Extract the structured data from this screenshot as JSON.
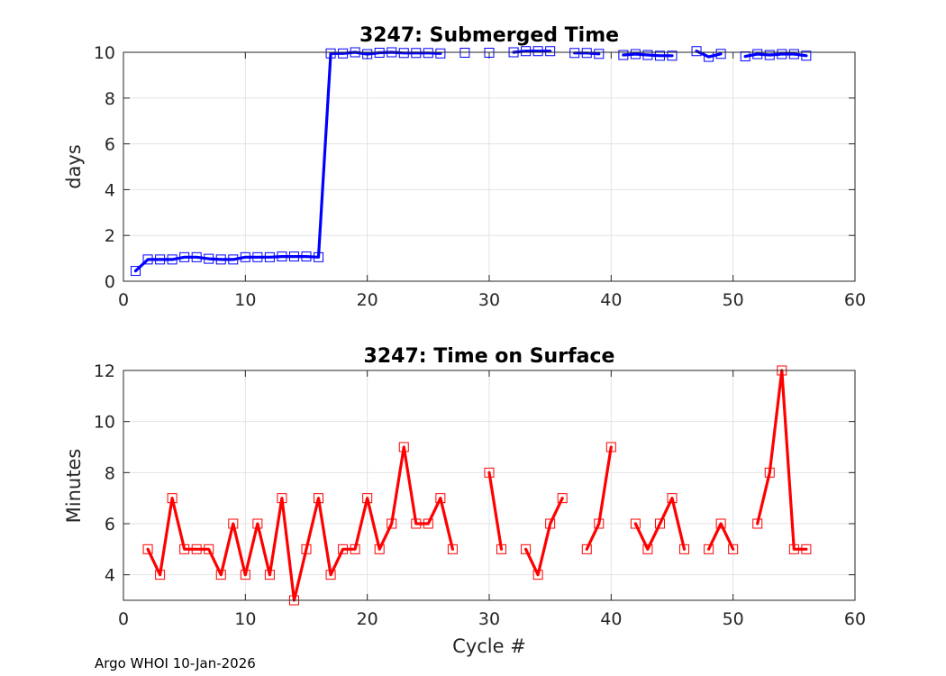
{
  "footer": "Argo WHOI 10-Jan-2026",
  "xlabel": "Cycle #",
  "chart_data": [
    {
      "type": "line",
      "title": "3247: Submerged Time",
      "xlabel": "",
      "ylabel": "days",
      "xlim": [
        0,
        60
      ],
      "ylim": [
        0,
        10
      ],
      "xticks": [
        0,
        10,
        20,
        30,
        40,
        50,
        60
      ],
      "yticks": [
        0,
        2,
        4,
        6,
        8,
        10
      ],
      "grid": true,
      "color": "#0000ff",
      "series": [
        {
          "name": "Submerged Time",
          "x": [
            1,
            2,
            3,
            4,
            5,
            6,
            7,
            8,
            9,
            10,
            11,
            12,
            13,
            14,
            15,
            16,
            17,
            18,
            19,
            20,
            21,
            22,
            23,
            24,
            25,
            26,
            27,
            28,
            29,
            30,
            31,
            32,
            33,
            34,
            35,
            36,
            37,
            38,
            39,
            40,
            41,
            42,
            43,
            44,
            45,
            46,
            47,
            48,
            49,
            50,
            51,
            52,
            53,
            54,
            55,
            56
          ],
          "values": [
            0.45,
            0.95,
            0.95,
            0.95,
            1.05,
            1.05,
            0.98,
            0.95,
            0.95,
            1.05,
            1.05,
            1.05,
            1.08,
            1.08,
            1.08,
            1.05,
            9.95,
            9.95,
            10.0,
            9.92,
            9.98,
            10.0,
            9.97,
            9.97,
            9.97,
            9.95,
            null,
            9.98,
            null,
            9.98,
            null,
            10.0,
            10.05,
            10.05,
            10.05,
            null,
            9.97,
            9.97,
            9.93,
            null,
            9.88,
            9.92,
            9.88,
            9.85,
            9.85,
            null,
            10.05,
            9.8,
            9.93,
            null,
            9.82,
            9.92,
            9.88,
            9.92,
            9.92,
            9.85
          ]
        }
      ]
    },
    {
      "type": "line",
      "title": "3247: Time on Surface",
      "xlabel": "Cycle #",
      "ylabel": "Minutes",
      "xlim": [
        0,
        60
      ],
      "ylim": [
        3,
        12
      ],
      "xticks": [
        0,
        10,
        20,
        30,
        40,
        50,
        60
      ],
      "yticks": [
        4,
        6,
        8,
        10,
        12
      ],
      "grid": true,
      "color": "#ff0000",
      "series": [
        {
          "name": "Time on Surface",
          "x": [
            1,
            2,
            3,
            4,
            5,
            6,
            7,
            8,
            9,
            10,
            11,
            12,
            13,
            14,
            15,
            16,
            17,
            18,
            19,
            20,
            21,
            22,
            23,
            24,
            25,
            26,
            27,
            28,
            29,
            30,
            31,
            32,
            33,
            34,
            35,
            36,
            37,
            38,
            39,
            40,
            41,
            42,
            43,
            44,
            45,
            46,
            47,
            48,
            49,
            50,
            51,
            52,
            53,
            54,
            55,
            56
          ],
          "values": [
            null,
            5,
            4,
            7,
            5,
            5,
            5,
            4,
            6,
            4,
            6,
            4,
            7,
            3,
            5,
            7,
            4,
            5,
            5,
            7,
            5,
            6,
            9,
            6,
            6,
            7,
            5,
            null,
            null,
            8,
            5,
            null,
            5,
            4,
            6,
            7,
            null,
            5,
            6,
            9,
            null,
            6,
            5,
            6,
            7,
            5,
            null,
            5,
            6,
            5,
            null,
            6,
            8,
            12,
            5,
            5
          ]
        }
      ]
    }
  ]
}
